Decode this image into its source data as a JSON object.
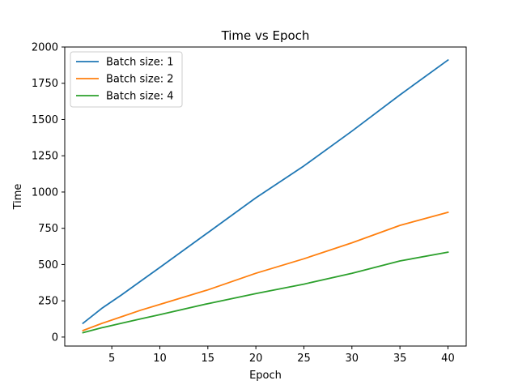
{
  "chart_data": {
    "type": "line",
    "title": "Time vs Epoch",
    "xlabel": "Epoch",
    "ylabel": "Time",
    "xlim": [
      0.1,
      41.9
    ],
    "ylim": [
      -62,
      2000
    ],
    "x_ticks": [
      5,
      10,
      15,
      20,
      25,
      30,
      35,
      40
    ],
    "y_ticks": [
      0,
      250,
      500,
      750,
      1000,
      1250,
      1500,
      1750,
      2000
    ],
    "grid": false,
    "legend_position": "upper-left",
    "x": [
      2,
      4,
      6,
      8,
      10,
      15,
      20,
      25,
      30,
      35,
      40
    ],
    "series": [
      {
        "name": "Batch size: 1",
        "color": "#1f77b4",
        "values": [
          95,
          200,
          290,
          385,
          480,
          720,
          960,
          1180,
          1420,
          1670,
          1910
        ]
      },
      {
        "name": "Batch size: 2",
        "color": "#ff7f0e",
        "values": [
          45,
          95,
          140,
          185,
          225,
          325,
          440,
          540,
          650,
          770,
          860
        ]
      },
      {
        "name": "Batch size: 4",
        "color": "#2ca02c",
        "values": [
          30,
          65,
          95,
          125,
          155,
          230,
          300,
          365,
          440,
          525,
          585
        ]
      }
    ]
  }
}
